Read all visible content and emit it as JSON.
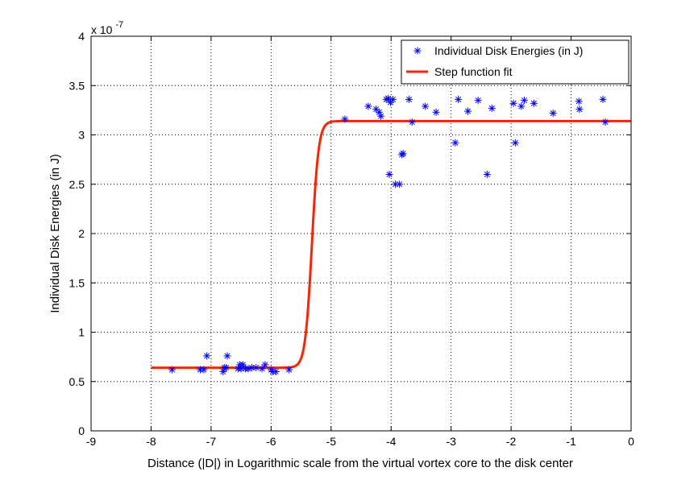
{
  "chart_data": {
    "type": "scatter",
    "xlabel": "Distance (|D|) in Logarithmic scale from the virtual vortex core to the disk center",
    "ylabel": "Individual Disk Energies (in J)",
    "y_multiplier": "x 10",
    "y_multiplier_exponent": "-7",
    "xlim": [
      -9,
      0
    ],
    "ylim": [
      0,
      4
    ],
    "xticks": [
      "-9",
      "-8",
      "-7",
      "-6",
      "-5",
      "-4",
      "-3",
      "-2",
      "-1",
      "0"
    ],
    "yticks": [
      "0",
      "0.5",
      "1",
      "1.5",
      "2",
      "2.5",
      "3",
      "3.5",
      "4"
    ],
    "grid": true,
    "legend_position": "top-right",
    "series": [
      {
        "name": "Individual Disk Energies (in J)",
        "type": "scatter",
        "marker": "asterisk",
        "color": "#0000ff",
        "points": [
          [
            -7.65,
            0.62
          ],
          [
            -7.18,
            0.62
          ],
          [
            -7.12,
            0.62
          ],
          [
            -7.07,
            0.76
          ],
          [
            -6.8,
            0.6
          ],
          [
            -6.78,
            0.64
          ],
          [
            -6.75,
            0.64
          ],
          [
            -6.73,
            0.76
          ],
          [
            -6.55,
            0.63
          ],
          [
            -6.52,
            0.67
          ],
          [
            -6.5,
            0.63
          ],
          [
            -6.47,
            0.67
          ],
          [
            -6.43,
            0.63
          ],
          [
            -6.38,
            0.63
          ],
          [
            -6.32,
            0.64
          ],
          [
            -6.25,
            0.64
          ],
          [
            -6.15,
            0.63
          ],
          [
            -6.1,
            0.67
          ],
          [
            -6.0,
            0.62
          ],
          [
            -5.97,
            0.6
          ],
          [
            -5.92,
            0.6
          ],
          [
            -5.7,
            0.62
          ],
          [
            -4.77,
            3.16
          ],
          [
            -4.38,
            3.29
          ],
          [
            -4.25,
            3.26
          ],
          [
            -4.2,
            3.23
          ],
          [
            -4.17,
            3.19
          ],
          [
            -4.08,
            3.36
          ],
          [
            -4.05,
            3.37
          ],
          [
            -4.03,
            2.6
          ],
          [
            -4.01,
            3.33
          ],
          [
            -3.97,
            3.36
          ],
          [
            -3.93,
            2.5
          ],
          [
            -3.86,
            2.5
          ],
          [
            -3.82,
            2.8
          ],
          [
            -3.8,
            2.81
          ],
          [
            -3.7,
            3.36
          ],
          [
            -3.65,
            3.13
          ],
          [
            -3.43,
            3.29
          ],
          [
            -3.25,
            3.23
          ],
          [
            -2.93,
            2.92
          ],
          [
            -2.88,
            3.36
          ],
          [
            -2.72,
            3.24
          ],
          [
            -2.55,
            3.35
          ],
          [
            -2.4,
            2.6
          ],
          [
            -2.32,
            3.27
          ],
          [
            -1.96,
            3.32
          ],
          [
            -1.93,
            2.92
          ],
          [
            -1.83,
            3.29
          ],
          [
            -1.78,
            3.35
          ],
          [
            -1.62,
            3.32
          ],
          [
            -1.3,
            3.22
          ],
          [
            -0.87,
            3.34
          ],
          [
            -0.86,
            3.26
          ],
          [
            -0.47,
            3.36
          ],
          [
            -0.43,
            3.13
          ]
        ]
      },
      {
        "name": "Step function fit",
        "type": "line",
        "color": "#ff2200",
        "x_range": [
          -8,
          0
        ],
        "low": 0.64,
        "high": 3.14,
        "center": -5.32,
        "steepness": 18
      }
    ]
  }
}
